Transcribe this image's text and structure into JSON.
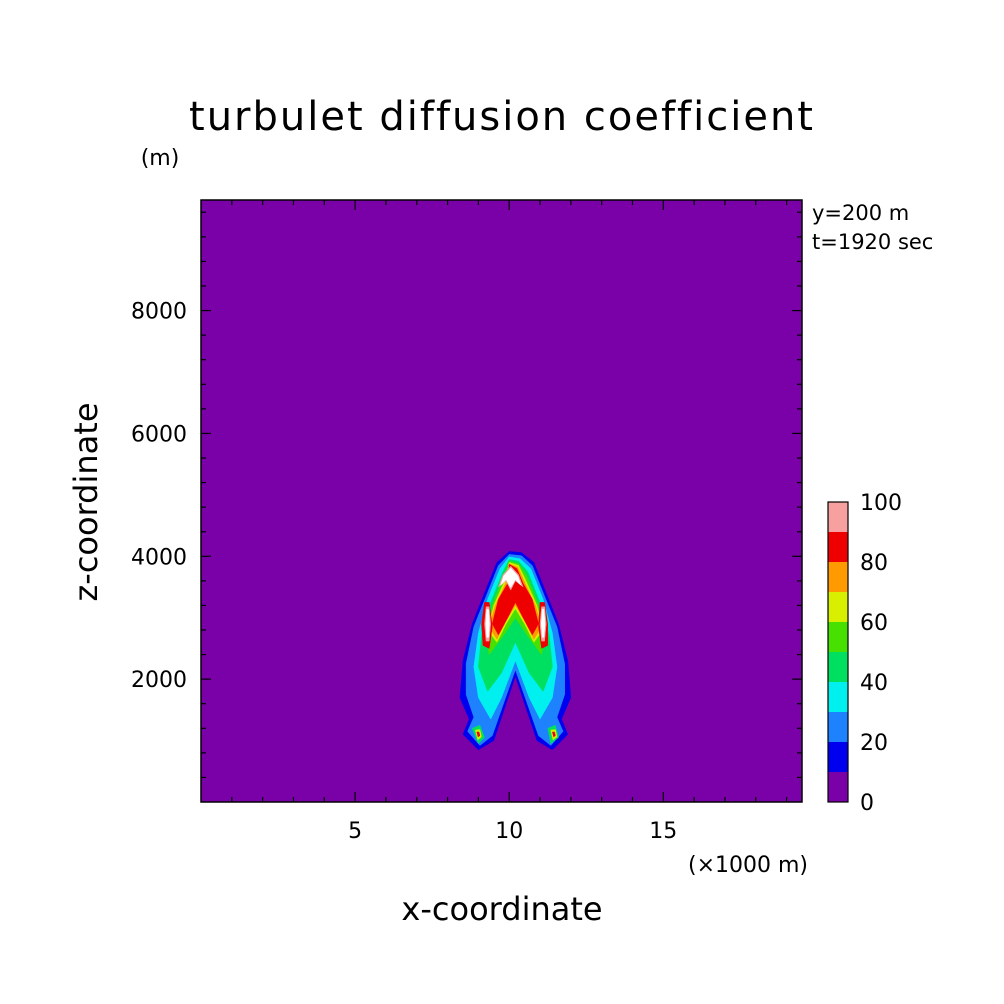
{
  "chart_data": {
    "type": "heatmap",
    "title": "turbulet diffusion coefficient",
    "ylabel": "z-coordinate",
    "xlabel": "x-coordinate",
    "y_unit": "(m)",
    "x_unit": "(×1000 m)",
    "annotations": [
      "y=200 m",
      "t=1920 sec"
    ],
    "xlim": [
      0,
      19.5
    ],
    "ylim": [
      0,
      9800
    ],
    "x_ticks": [
      5,
      10,
      15
    ],
    "x_tick_labels": [
      "5",
      "10",
      "15"
    ],
    "y_ticks": [
      2000,
      4000,
      6000,
      8000
    ],
    "y_tick_labels": [
      "2000",
      "4000",
      "6000",
      "8000"
    ],
    "background_value": 0,
    "colorbar": {
      "levels": [
        0,
        10,
        20,
        30,
        40,
        50,
        60,
        70,
        80,
        90,
        100
      ],
      "tick_labels": [
        "0",
        "20",
        "40",
        "60",
        "80",
        "100"
      ],
      "colors": [
        "#7a00a8",
        "#0000ee",
        "#1e82ff",
        "#00f0f0",
        "#00e060",
        "#48e000",
        "#d8f000",
        "#ff9a00",
        "#ee0000",
        "#f6a0a0"
      ],
      "above_color": "#ffffff"
    },
    "contour_regions": [
      {
        "level": 10,
        "color": "#0000ee",
        "points": [
          [
            10.0,
            4080
          ],
          [
            10.4,
            4060
          ],
          [
            10.8,
            3900
          ],
          [
            11.2,
            3400
          ],
          [
            11.6,
            2900
          ],
          [
            11.9,
            2300
          ],
          [
            12.0,
            1700
          ],
          [
            11.7,
            1350
          ],
          [
            11.9,
            1100
          ],
          [
            11.4,
            850
          ],
          [
            10.9,
            1000
          ],
          [
            10.5,
            1600
          ],
          [
            10.2,
            2050
          ],
          [
            9.9,
            1600
          ],
          [
            9.5,
            1000
          ],
          [
            9.0,
            850
          ],
          [
            8.5,
            1100
          ],
          [
            8.7,
            1350
          ],
          [
            8.4,
            1700
          ],
          [
            8.5,
            2300
          ],
          [
            8.8,
            2900
          ],
          [
            9.2,
            3400
          ],
          [
            9.6,
            3900
          ]
        ]
      },
      {
        "level": 20,
        "color": "#1e82ff",
        "points": [
          [
            10.0,
            4030
          ],
          [
            10.4,
            4010
          ],
          [
            10.75,
            3850
          ],
          [
            11.15,
            3350
          ],
          [
            11.55,
            2850
          ],
          [
            11.8,
            2250
          ],
          [
            11.8,
            1750
          ],
          [
            11.55,
            1380
          ],
          [
            11.75,
            1150
          ],
          [
            11.35,
            920
          ],
          [
            10.95,
            1080
          ],
          [
            10.55,
            1650
          ],
          [
            10.2,
            2150
          ],
          [
            9.85,
            1650
          ],
          [
            9.45,
            1080
          ],
          [
            9.05,
            920
          ],
          [
            8.65,
            1150
          ],
          [
            8.85,
            1380
          ],
          [
            8.6,
            1750
          ],
          [
            8.6,
            2250
          ],
          [
            8.85,
            2850
          ],
          [
            9.25,
            3350
          ],
          [
            9.65,
            3850
          ]
        ]
      },
      {
        "level": 30,
        "color": "#00f0f0",
        "points": [
          [
            10.0,
            3990
          ],
          [
            10.35,
            3960
          ],
          [
            10.7,
            3800
          ],
          [
            11.1,
            3300
          ],
          [
            11.4,
            2750
          ],
          [
            11.55,
            2200
          ],
          [
            11.4,
            1700
          ],
          [
            11.0,
            1350
          ],
          [
            10.65,
            1700
          ],
          [
            10.2,
            2300
          ],
          [
            9.75,
            1700
          ],
          [
            9.4,
            1350
          ],
          [
            9.0,
            1700
          ],
          [
            8.85,
            2200
          ],
          [
            9.0,
            2750
          ],
          [
            9.3,
            3300
          ],
          [
            9.7,
            3800
          ]
        ]
      },
      {
        "level": 40,
        "color": "#00e060",
        "points": [
          [
            10.0,
            3950
          ],
          [
            10.3,
            3920
          ],
          [
            10.6,
            3750
          ],
          [
            11.0,
            3250
          ],
          [
            11.3,
            2700
          ],
          [
            11.4,
            2200
          ],
          [
            11.1,
            1800
          ],
          [
            10.65,
            2100
          ],
          [
            10.2,
            2600
          ],
          [
            9.75,
            2100
          ],
          [
            9.3,
            1800
          ],
          [
            9.0,
            2200
          ],
          [
            9.1,
            2700
          ],
          [
            9.4,
            3250
          ],
          [
            9.8,
            3750
          ]
        ]
      },
      {
        "level": 50,
        "color": "#48e000",
        "points": [
          [
            10.0,
            3920
          ],
          [
            10.3,
            3880
          ],
          [
            10.55,
            3700
          ],
          [
            10.95,
            3200
          ],
          [
            11.15,
            2700
          ],
          [
            11.05,
            2400
          ],
          [
            10.6,
            2700
          ],
          [
            10.2,
            3000
          ],
          [
            9.8,
            2700
          ],
          [
            9.35,
            2400
          ],
          [
            9.25,
            2700
          ],
          [
            9.45,
            3200
          ],
          [
            9.85,
            3700
          ]
        ]
      },
      {
        "level": 60,
        "color": "#d8f000",
        "points": [
          [
            10.0,
            3900
          ],
          [
            10.3,
            3850
          ],
          [
            10.5,
            3650
          ],
          [
            10.9,
            3200
          ],
          [
            11.1,
            2800
          ],
          [
            10.8,
            2600
          ],
          [
            10.5,
            2900
          ],
          [
            10.2,
            3150
          ],
          [
            9.9,
            2900
          ],
          [
            9.6,
            2600
          ],
          [
            9.3,
            2800
          ],
          [
            9.5,
            3200
          ],
          [
            9.9,
            3650
          ]
        ]
      },
      {
        "level": 70,
        "color": "#ff9a00",
        "points": [
          [
            10.0,
            3880
          ],
          [
            10.28,
            3820
          ],
          [
            10.48,
            3600
          ],
          [
            10.85,
            3200
          ],
          [
            11.05,
            2850
          ],
          [
            10.8,
            2650
          ],
          [
            10.5,
            2950
          ],
          [
            10.2,
            3200
          ],
          [
            9.9,
            2950
          ],
          [
            9.6,
            2650
          ],
          [
            9.35,
            2850
          ],
          [
            9.55,
            3200
          ],
          [
            9.92,
            3600
          ]
        ]
      },
      {
        "level": 80,
        "color": "#ee0000",
        "points": [
          [
            10.0,
            3870
          ],
          [
            10.25,
            3800
          ],
          [
            10.45,
            3560
          ],
          [
            10.75,
            3300
          ],
          [
            10.95,
            2900
          ],
          [
            10.75,
            2720
          ],
          [
            10.45,
            3000
          ],
          [
            10.2,
            3250
          ],
          [
            9.95,
            3000
          ],
          [
            9.65,
            2720
          ],
          [
            9.45,
            2900
          ],
          [
            9.65,
            3300
          ],
          [
            9.95,
            3560
          ]
        ]
      },
      {
        "level": 80,
        "color": "#ee0000",
        "points": [
          [
            11.0,
            3250
          ],
          [
            11.15,
            3250
          ],
          [
            11.25,
            2900
          ],
          [
            11.25,
            2550
          ],
          [
            11.05,
            2500
          ],
          [
            10.95,
            2850
          ]
        ]
      },
      {
        "level": 80,
        "color": "#ee0000",
        "points": [
          [
            9.2,
            3250
          ],
          [
            9.35,
            3250
          ],
          [
            9.45,
            2850
          ],
          [
            9.35,
            2500
          ],
          [
            9.15,
            2550
          ],
          [
            9.1,
            2900
          ]
        ]
      },
      {
        "level": 90,
        "color": "#f6a0a0",
        "points": [
          [
            10.05,
            3840
          ],
          [
            10.3,
            3700
          ],
          [
            10.45,
            3500
          ],
          [
            10.2,
            3600
          ],
          [
            10.05,
            3450
          ],
          [
            9.9,
            3600
          ],
          [
            9.65,
            3500
          ],
          [
            9.8,
            3700
          ]
        ]
      },
      {
        "level": 100,
        "color": "#ffffff",
        "points": [
          [
            10.05,
            3810
          ],
          [
            10.28,
            3680
          ],
          [
            10.38,
            3530
          ],
          [
            10.2,
            3620
          ],
          [
            10.05,
            3490
          ],
          [
            9.9,
            3620
          ],
          [
            9.72,
            3530
          ],
          [
            9.82,
            3680
          ]
        ]
      },
      {
        "level": 90,
        "color": "#f6a0a0",
        "points": [
          [
            11.05,
            3180
          ],
          [
            11.15,
            3180
          ],
          [
            11.2,
            2900
          ],
          [
            11.15,
            2620
          ],
          [
            11.05,
            2620
          ],
          [
            11.0,
            2900
          ]
        ]
      },
      {
        "level": 90,
        "color": "#f6a0a0",
        "points": [
          [
            9.25,
            3180
          ],
          [
            9.35,
            3180
          ],
          [
            9.4,
            2900
          ],
          [
            9.35,
            2620
          ],
          [
            9.25,
            2620
          ],
          [
            9.2,
            2900
          ]
        ]
      },
      {
        "level": 100,
        "color": "#ffffff",
        "points": [
          [
            11.07,
            3140
          ],
          [
            11.13,
            3140
          ],
          [
            11.16,
            2900
          ],
          [
            11.13,
            2680
          ],
          [
            11.07,
            2680
          ],
          [
            11.04,
            2900
          ]
        ]
      },
      {
        "level": 100,
        "color": "#ffffff",
        "points": [
          [
            9.27,
            3140
          ],
          [
            9.33,
            3140
          ],
          [
            9.36,
            2900
          ],
          [
            9.33,
            2680
          ],
          [
            9.27,
            2680
          ],
          [
            9.24,
            2900
          ]
        ]
      },
      {
        "level": 40,
        "color": "#00e060",
        "points": [
          [
            8.8,
            1200
          ],
          [
            9.05,
            1250
          ],
          [
            9.2,
            1050
          ],
          [
            9.0,
            950
          ]
        ]
      },
      {
        "level": 40,
        "color": "#00e060",
        "points": [
          [
            11.25,
            1200
          ],
          [
            11.5,
            1250
          ],
          [
            11.6,
            1050
          ],
          [
            11.35,
            950
          ]
        ]
      },
      {
        "level": 60,
        "color": "#d8f000",
        "points": [
          [
            8.9,
            1170
          ],
          [
            9.05,
            1180
          ],
          [
            9.1,
            1060
          ],
          [
            8.98,
            1010
          ]
        ]
      },
      {
        "level": 60,
        "color": "#d8f000",
        "points": [
          [
            11.35,
            1170
          ],
          [
            11.5,
            1180
          ],
          [
            11.55,
            1060
          ],
          [
            11.42,
            1010
          ]
        ]
      },
      {
        "level": 80,
        "color": "#ee0000",
        "points": [
          [
            8.95,
            1140
          ],
          [
            9.02,
            1140
          ],
          [
            9.05,
            1080
          ],
          [
            8.99,
            1060
          ]
        ]
      },
      {
        "level": 80,
        "color": "#ee0000",
        "points": [
          [
            11.4,
            1140
          ],
          [
            11.47,
            1140
          ],
          [
            11.5,
            1080
          ],
          [
            11.44,
            1060
          ]
        ]
      }
    ]
  }
}
